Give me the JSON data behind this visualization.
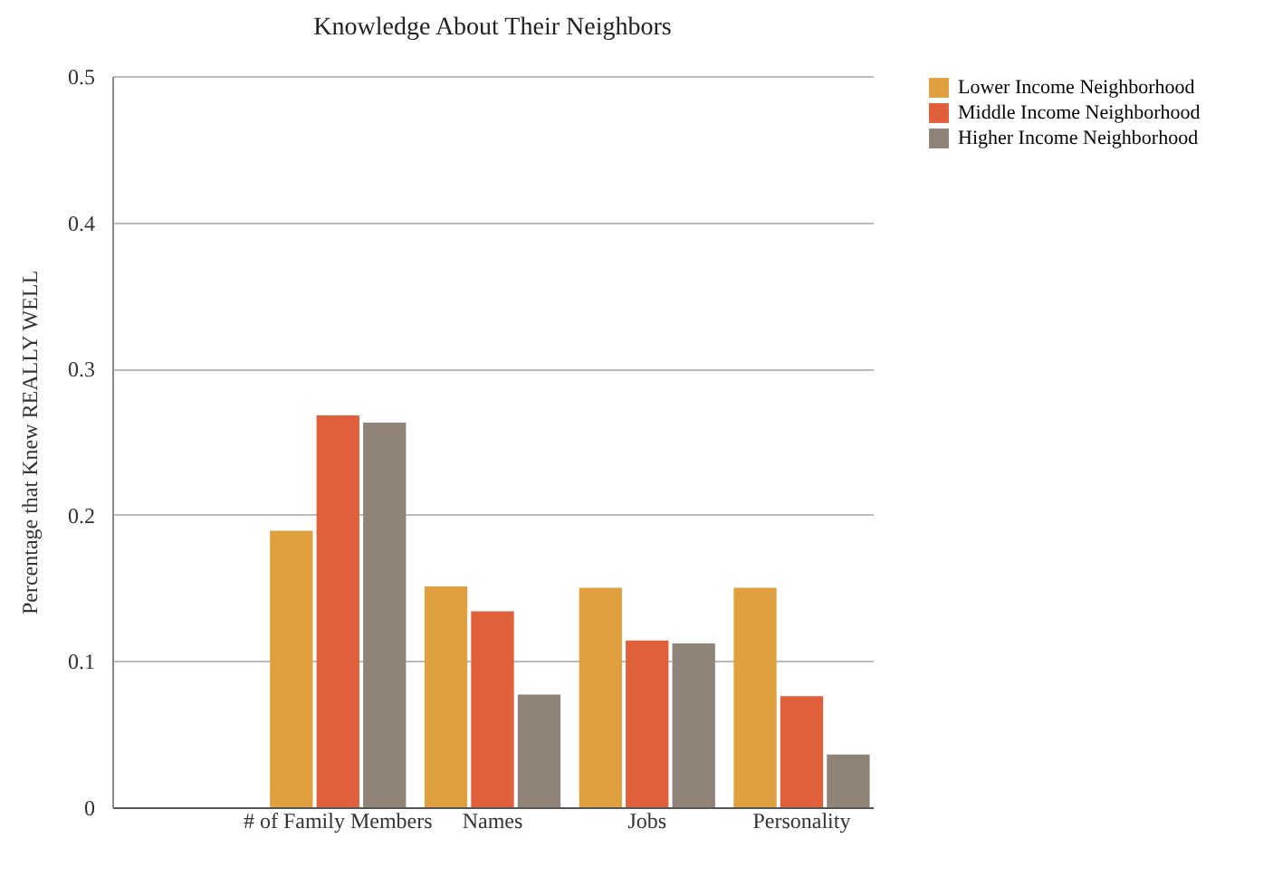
{
  "chart_data": {
    "type": "bar",
    "title": "Knowledge About Their Neighbors",
    "ylabel": "Percentage that Knew REALLY WELL",
    "categories": [
      null,
      "# of Family Members",
      "Names",
      "Jobs",
      "Personality"
    ],
    "series": [
      {
        "name": "Lower Income Neighborhood",
        "color": "#e0a040",
        "values": [
          null,
          0.189,
          0.151,
          0.15,
          0.15
        ]
      },
      {
        "name": "Middle Income Neighborhood",
        "color": "#e0603c",
        "values": [
          null,
          0.268,
          0.134,
          0.114,
          0.076
        ]
      },
      {
        "name": "Higher Income Neighborhood",
        "color": "#908478",
        "values": [
          null,
          0.263,
          0.077,
          0.112,
          0.036
        ]
      }
    ],
    "ylim": [
      0,
      0.5
    ],
    "yticks": [
      0,
      0.1,
      0.2,
      0.3,
      0.4,
      0.5
    ],
    "grid": "y",
    "legend": "top right"
  }
}
